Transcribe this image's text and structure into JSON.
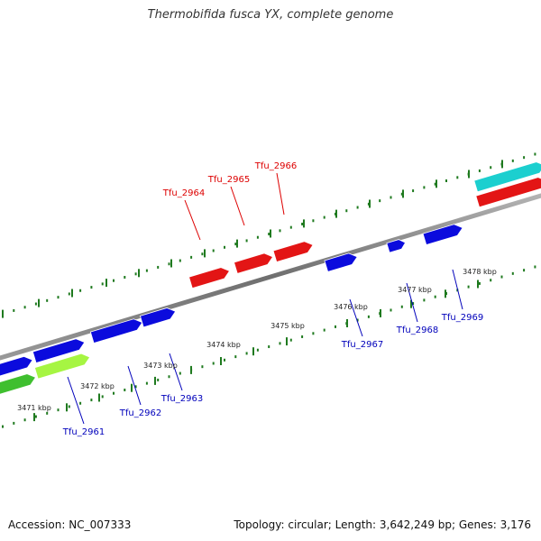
{
  "title": "Thermobifida fusca YX, complete genome",
  "footer": {
    "accession": "Accession: NC_007333",
    "summary": "Topology: circular; Length: 3,642,249 bp; Genes: 3,176"
  },
  "colors": {
    "backbone": "#808080",
    "tick": "#1f7a1f",
    "forward_label": "#dd0000",
    "reverse_label": "#0000bb",
    "kbp_label": "#222222"
  },
  "scale_labels": [
    {
      "name": "kbp-3471",
      "text": "3471 kbp"
    },
    {
      "name": "kbp-3472",
      "text": "3472 kbp"
    },
    {
      "name": "kbp-3473",
      "text": "3473 kbp"
    },
    {
      "name": "kbp-3474",
      "text": "3474 kbp"
    },
    {
      "name": "kbp-3475",
      "text": "3475 kbp"
    },
    {
      "name": "kbp-3476",
      "text": "3476 kbp"
    },
    {
      "name": "kbp-3477",
      "text": "3477 kbp"
    },
    {
      "name": "kbp-3478",
      "text": "3478 kbp"
    }
  ],
  "genes": [
    {
      "name": "gene-tfu-2961",
      "label": "Tfu_2961",
      "strand": "reverse",
      "color": "#a6f542"
    },
    {
      "name": "gene-tfu-2962",
      "label": "Tfu_2962",
      "strand": "reverse",
      "color": "#0b0bdd"
    },
    {
      "name": "gene-tfu-2963",
      "label": "Tfu_2963",
      "strand": "reverse",
      "color": "#0b0bdd"
    },
    {
      "name": "gene-tfu-2964",
      "label": "Tfu_2964",
      "strand": "forward",
      "color": "#e31515"
    },
    {
      "name": "gene-tfu-2965",
      "label": "Tfu_2965",
      "strand": "forward",
      "color": "#e31515"
    },
    {
      "name": "gene-tfu-2966",
      "label": "Tfu_2966",
      "strand": "forward",
      "color": "#e31515"
    },
    {
      "name": "gene-tfu-2967",
      "label": "Tfu_2967",
      "strand": "reverse",
      "color": "#0b0bdd"
    },
    {
      "name": "gene-tfu-2968",
      "label": "Tfu_2968",
      "strand": "reverse",
      "color": "#0b0bdd"
    },
    {
      "name": "gene-tfu-2969",
      "label": "Tfu_2969",
      "strand": "reverse",
      "color": "#0b0bdd"
    }
  ],
  "unlabeled_features": [
    {
      "name": "feature-blue-left-1",
      "color": "#0b0bdd"
    },
    {
      "name": "feature-blue-left-2",
      "color": "#0b0bdd"
    },
    {
      "name": "feature-green-left",
      "color": "#3fbf2f"
    },
    {
      "name": "feature-cyan-right",
      "color": "#1ccfcf"
    },
    {
      "name": "feature-red-right",
      "color": "#e31515"
    }
  ]
}
